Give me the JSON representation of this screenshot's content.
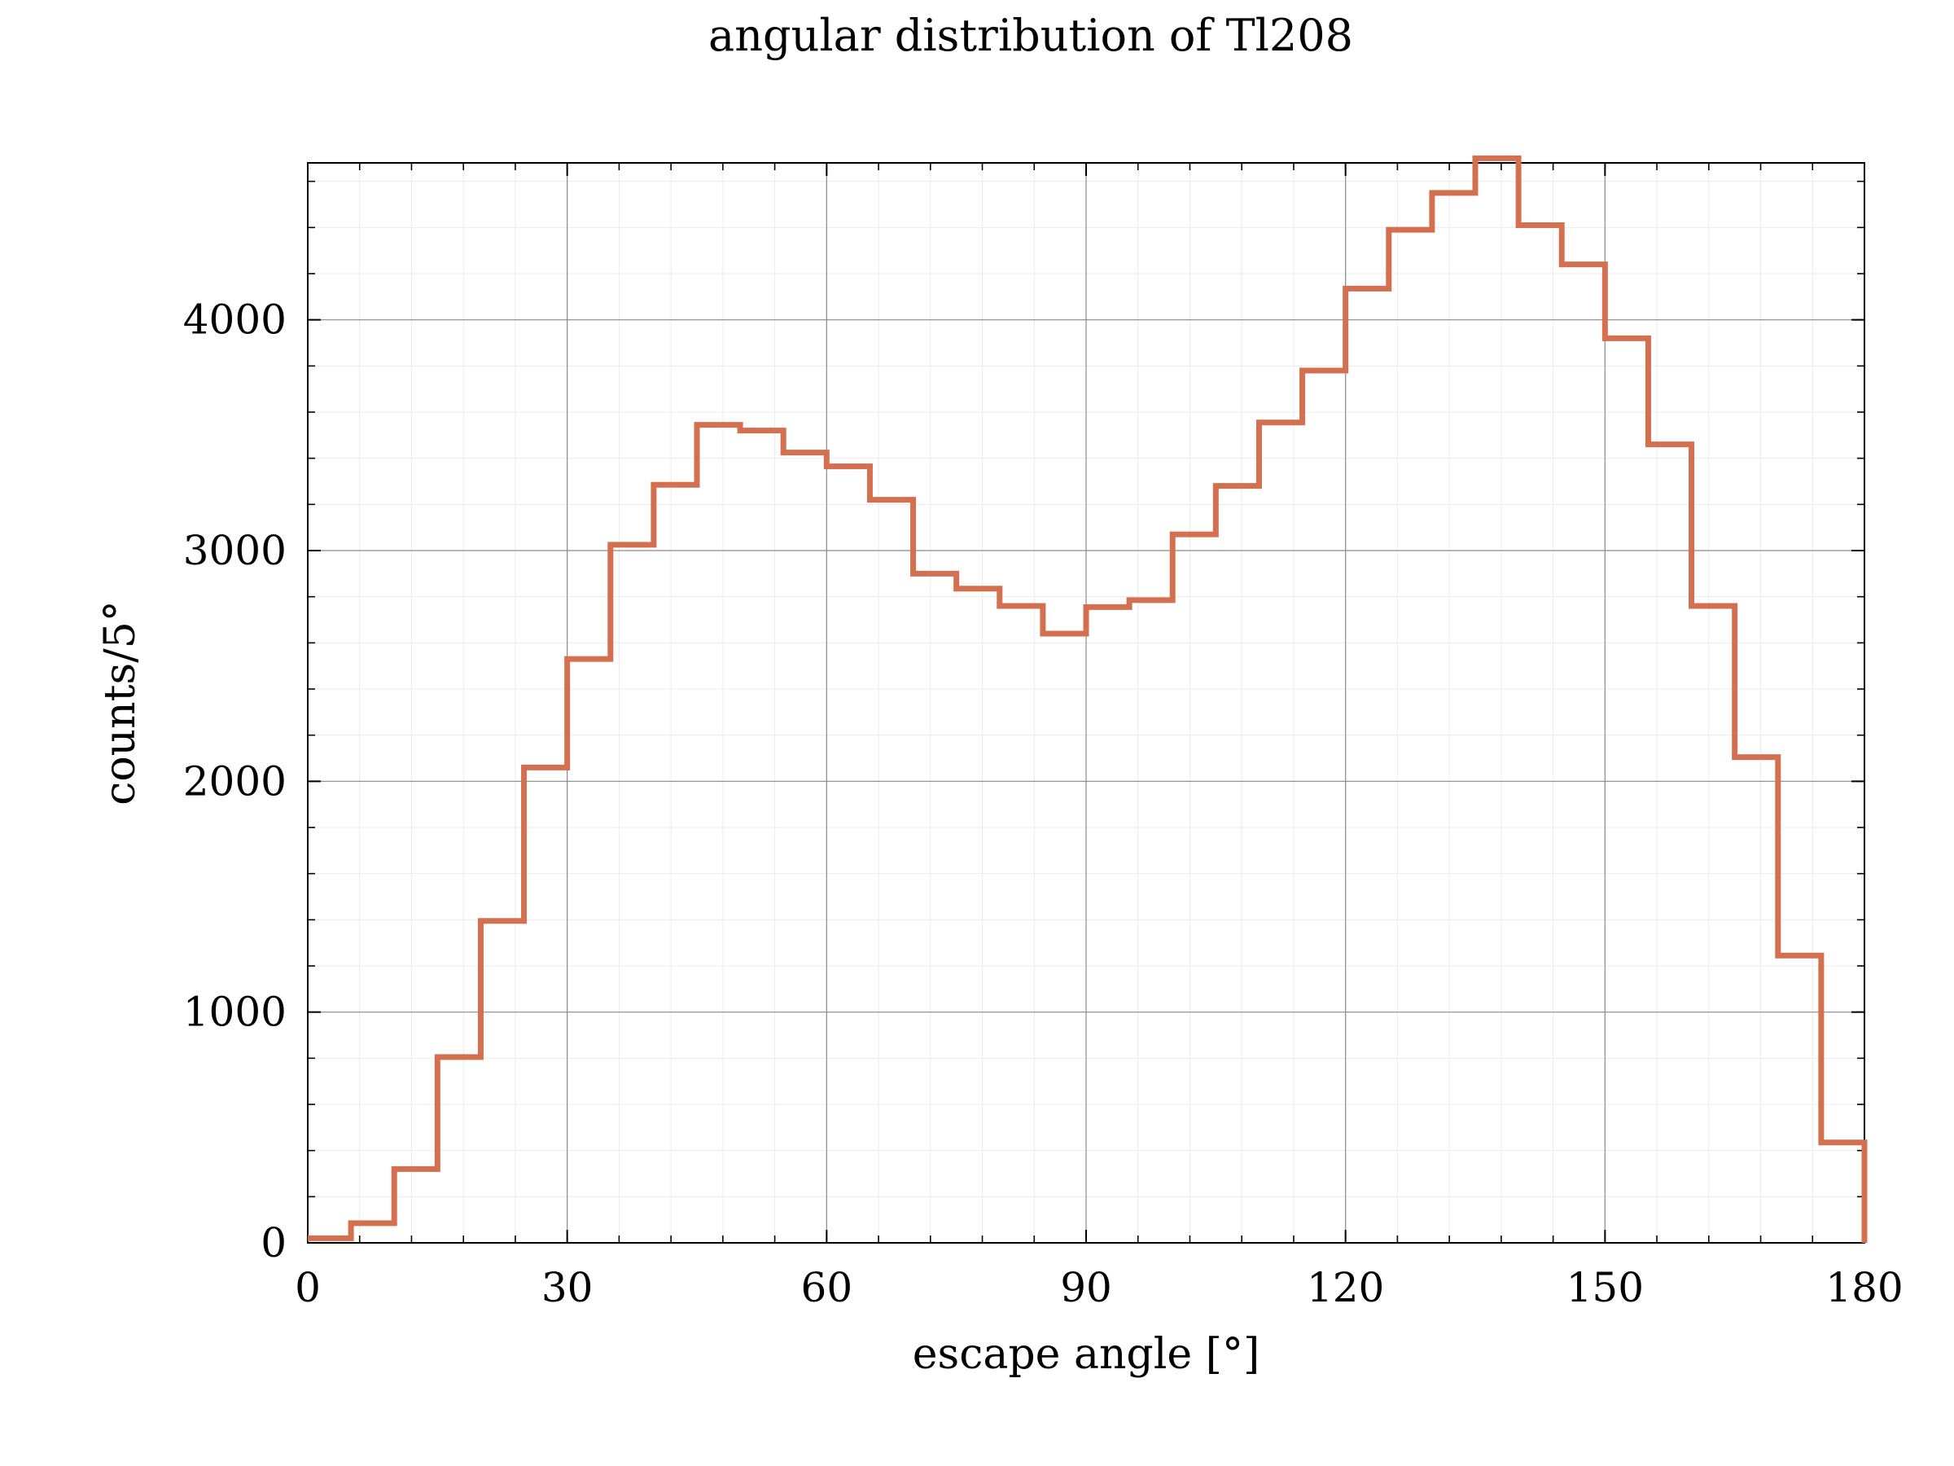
{
  "chart_data": {
    "type": "histogram-step",
    "title": "angular distribution of Tl208",
    "xlabel": "escape angle [°]",
    "ylabel": "counts/5°",
    "xlim": [
      0,
      180
    ],
    "ylim": [
      0,
      4680
    ],
    "x_ticks": [
      0,
      30,
      60,
      90,
      120,
      150,
      180
    ],
    "y_ticks": [
      0,
      1000,
      2000,
      3000,
      4000
    ],
    "x_minor_step": 6,
    "y_minor_step": 200,
    "grid": true,
    "color": "#d4704f",
    "bin_edges": [
      0,
      5,
      10,
      15,
      20,
      25,
      30,
      35,
      40,
      45,
      50,
      55,
      60,
      65,
      70,
      75,
      80,
      85,
      90,
      95,
      100,
      105,
      110,
      115,
      120,
      125,
      130,
      135,
      140,
      145,
      150,
      155,
      160,
      165,
      170,
      175,
      180
    ],
    "series": [
      {
        "values": [
          20,
          85,
          320,
          805,
          1395,
          2060,
          2530,
          3025,
          3285,
          3545,
          3520,
          3425,
          3365,
          3220,
          2900,
          2835,
          2760,
          2640,
          2755,
          2785,
          3070,
          3280,
          3555,
          3780,
          4135,
          4390,
          4550,
          4700,
          4410,
          4240,
          3920,
          3460,
          2760,
          2105,
          1245,
          435
        ]
      }
    ]
  }
}
